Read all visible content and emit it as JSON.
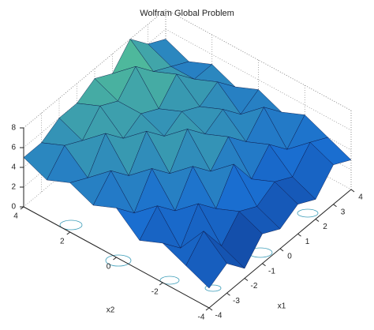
{
  "chart_data": {
    "type": "surface",
    "title": "Wolfram Global Problem",
    "xlabel": "x1",
    "ylabel": "x2",
    "x": [
      -4,
      -3,
      -2,
      -1,
      0,
      1,
      2,
      3,
      4
    ],
    "y": [
      -4,
      -3,
      -2,
      -1,
      0,
      1,
      2,
      3,
      4
    ],
    "z": [
      [
        2,
        3,
        1,
        3,
        2,
        3,
        2,
        4,
        3
      ],
      [
        3,
        5,
        2,
        4,
        3,
        4,
        3,
        5,
        4
      ],
      [
        4,
        2,
        5,
        3,
        6,
        3,
        5,
        3,
        5
      ],
      [
        3,
        5,
        3,
        6,
        4,
        6,
        4,
        6,
        4
      ],
      [
        5,
        3,
        6,
        4,
        7,
        5,
        6,
        4,
        5
      ],
      [
        4,
        6,
        4,
        7,
        5,
        6,
        5,
        6,
        4
      ],
      [
        5,
        4,
        7,
        5,
        6,
        5,
        7,
        5,
        5
      ],
      [
        4,
        6,
        5,
        7,
        6,
        8,
        6,
        5,
        4
      ],
      [
        5,
        5,
        6,
        6,
        7,
        6,
        8,
        6,
        5
      ]
    ],
    "xlim": [
      -4,
      4
    ],
    "ylim": [
      -4,
      4
    ],
    "zlim": [
      0,
      8
    ],
    "xticks": [
      -4,
      -3,
      -2,
      -1,
      0,
      1,
      2,
      3,
      4
    ],
    "yticks": [
      -4,
      -2,
      0,
      2,
      4
    ],
    "zticks": [
      0,
      2,
      4,
      6,
      8
    ],
    "grid": true
  }
}
